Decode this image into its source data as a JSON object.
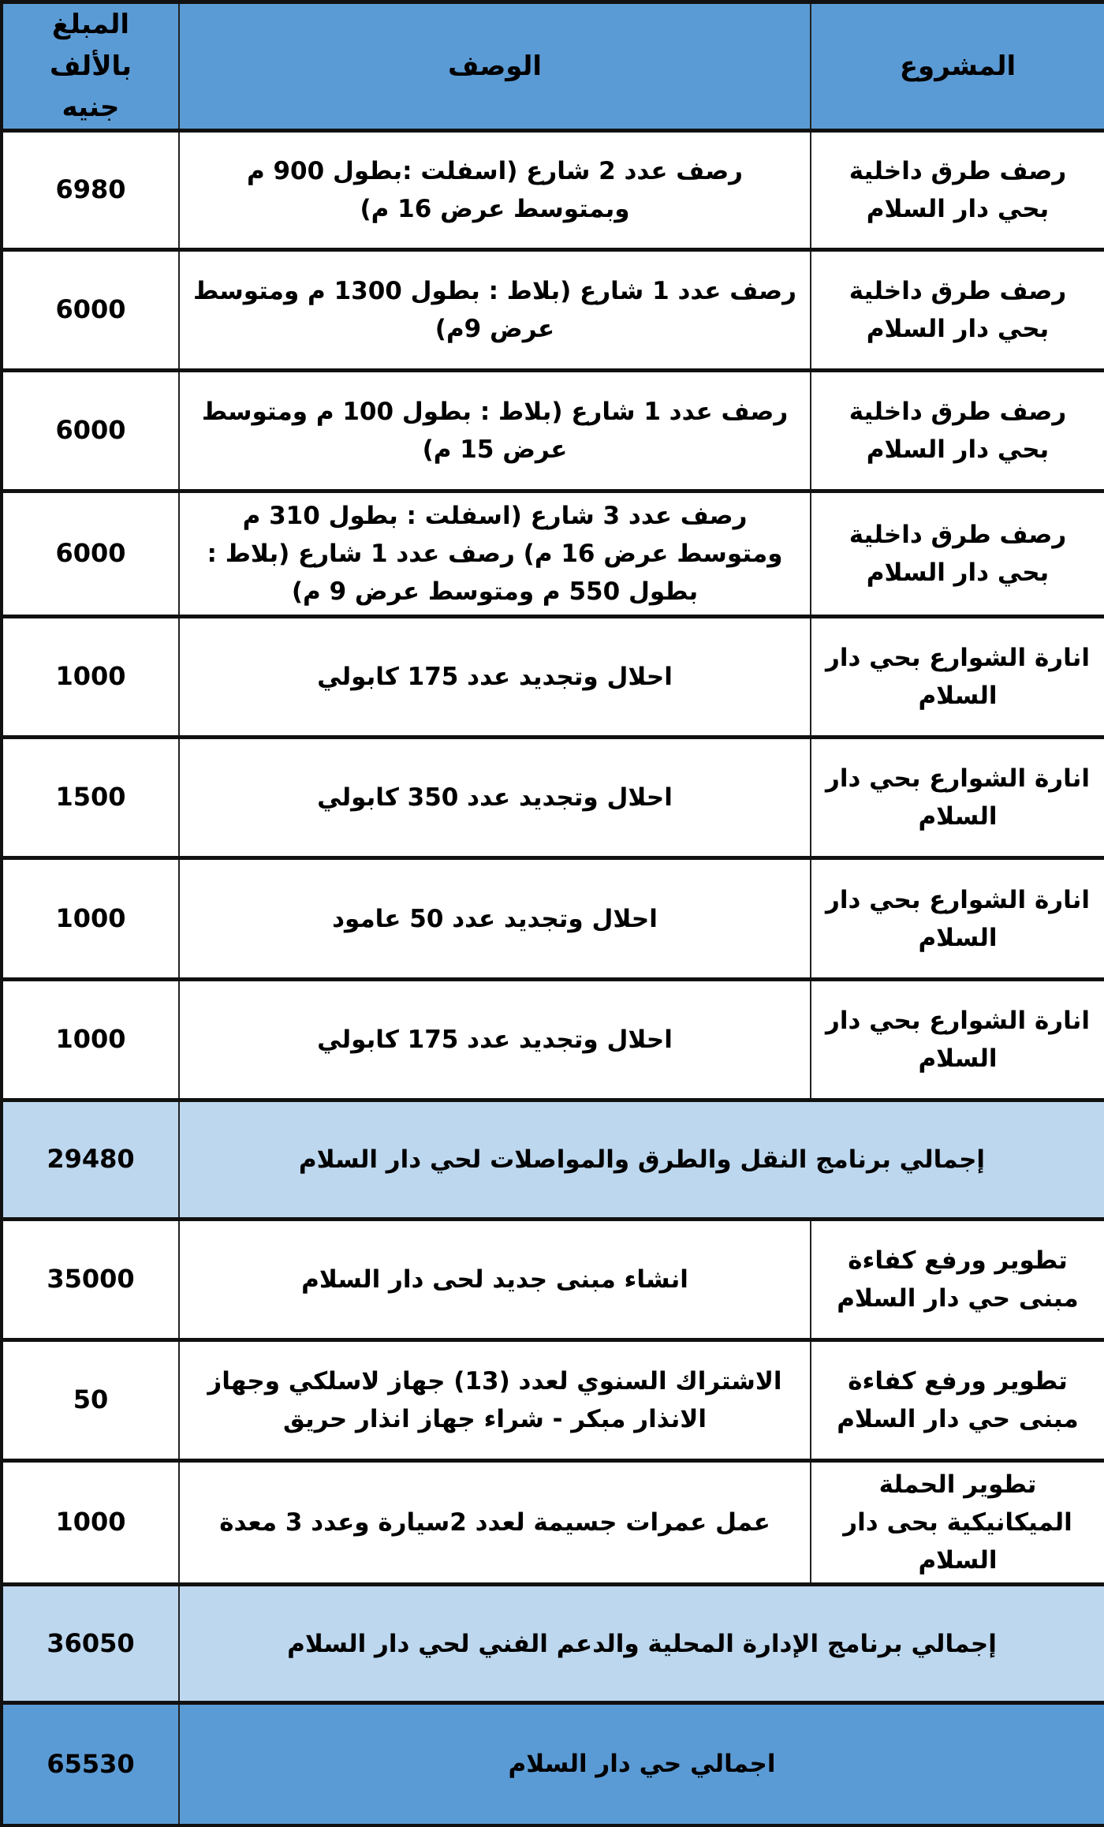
{
  "header": {
    "project": "المشروع",
    "description": "الوصف",
    "amount": "المبلغ بالألف جنيه"
  },
  "colors": {
    "header_bg": "#5b9bd5",
    "subtotal_bg": "#bdd7ee"
  },
  "rows": [
    {
      "type": "item",
      "project": "رصف طرق داخلية بحي دار السلام",
      "description": "رصف عدد 2 شارع (اسفلت :بطول 900 م وبمتوسط عرض 16 م)",
      "amount": "6980"
    },
    {
      "type": "item",
      "project": "رصف طرق داخلية بحي دار السلام",
      "description": "رصف عدد 1 شارع (بلاط : بطول 1300 م ومتوسط عرض 9م)",
      "amount": "6000"
    },
    {
      "type": "item",
      "project": "رصف طرق داخلية بحي دار السلام",
      "description": "رصف عدد 1 شارع (بلاط : بطول 100 م ومتوسط عرض 15 م)",
      "amount": "6000"
    },
    {
      "type": "item",
      "project": "رصف طرق داخلية بحي دار السلام",
      "description": "رصف عدد 3 شارع (اسفلت : بطول 310 م ومتوسط عرض 16 م) رصف عدد 1 شارع (بلاط : بطول 550 م ومتوسط عرض 9 م)",
      "amount": "6000"
    },
    {
      "type": "item",
      "project": "انارة الشوارع بحي دار السلام",
      "description": "احلال وتجديد عدد 175 كابولي",
      "amount": "1000"
    },
    {
      "type": "item",
      "project": "انارة الشوارع بحي دار السلام",
      "description": "احلال وتجديد عدد 350 كابولي",
      "amount": "1500"
    },
    {
      "type": "item",
      "project": "انارة الشوارع بحي دار السلام",
      "description": "احلال وتجديد عدد 50 عامود",
      "amount": "1000"
    },
    {
      "type": "item",
      "project": "انارة الشوارع بحي دار السلام",
      "description": "احلال وتجديد عدد 175 كابولي",
      "amount": "1000"
    },
    {
      "type": "subtotal",
      "description": "إجمالي برنامج النقل والطرق والمواصلات لحي دار السلام",
      "amount": "29480"
    },
    {
      "type": "item",
      "project": "تطوير ورفع كفاءة مبنى حي دار السلام",
      "description": "انشاء مبنى جديد لحى دار السلام",
      "amount": "35000"
    },
    {
      "type": "item",
      "project": "تطوير ورفع كفاءة مبنى حي دار السلام",
      "description": "الاشتراك السنوي لعدد (13) جهاز لاسلكي وجهاز الانذار مبكر - شراء جهاز انذار حريق",
      "amount": "50"
    },
    {
      "type": "item",
      "project": "تطوير الحملة الميكانيكية بحى دار السلام",
      "description": "عمل عمرات جسيمة لعدد 2سيارة وعدد 3 معدة",
      "amount": "1000"
    },
    {
      "type": "subtotal",
      "description": "إجمالي برنامج الإدارة المحلية والدعم الفني لحي دار السلام",
      "amount": "36050"
    },
    {
      "type": "total",
      "description": "اجمالي حي دار السلام",
      "amount": "65530"
    }
  ]
}
